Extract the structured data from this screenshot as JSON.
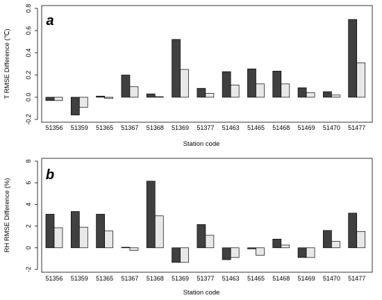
{
  "chart_data": [
    {
      "type": "bar",
      "panel_label": "a",
      "ylabel": "T RMSE Difference (℃)",
      "xlabel": "Station code",
      "categories": [
        "51356",
        "51359",
        "51365",
        "51367",
        "51368",
        "51369",
        "51377",
        "51463",
        "51465",
        "51468",
        "51469",
        "51470",
        "51477"
      ],
      "ylim": [
        -0.2,
        0.8
      ],
      "yticks": [
        -0.2,
        0.0,
        0.2,
        0.4,
        0.6,
        0.8
      ],
      "ytick_labels": [
        "-0.2",
        "0.0",
        "0.2",
        "0.4",
        "0.6",
        "0.8"
      ],
      "series": [
        {
          "values": [
            -0.03,
            -0.16,
            0.01,
            0.2,
            0.03,
            0.52,
            0.08,
            0.23,
            0.255,
            0.235,
            0.085,
            0.05,
            0.7
          ],
          "color": "#404040"
        },
        {
          "values": [
            -0.03,
            -0.09,
            -0.01,
            0.095,
            0.005,
            0.25,
            0.035,
            0.11,
            0.12,
            0.12,
            0.04,
            0.02,
            0.31
          ],
          "color": "#e8e8e8"
        }
      ]
    },
    {
      "type": "bar",
      "panel_label": "b",
      "ylabel": "RH RMSE Difference (%)",
      "xlabel": "Station code",
      "categories": [
        "51356",
        "51359",
        "51365",
        "51367",
        "51368",
        "51369",
        "51377",
        "51463",
        "51465",
        "51468",
        "51469",
        "51470",
        "51477"
      ],
      "ylim": [
        -2,
        8
      ],
      "yticks": [
        -2,
        0,
        2,
        4,
        6,
        8
      ],
      "ytick_labels": [
        "-2",
        "0",
        "2",
        "4",
        "6",
        "8"
      ],
      "series": [
        {
          "values": [
            3.1,
            3.35,
            3.1,
            0.05,
            6.15,
            -1.35,
            2.15,
            -1.1,
            -0.1,
            0.8,
            -0.9,
            1.6,
            3.2
          ],
          "color": "#404040"
        },
        {
          "values": [
            1.85,
            1.9,
            1.55,
            -0.25,
            2.95,
            -1.35,
            1.15,
            -0.9,
            -0.7,
            0.25,
            -0.9,
            0.6,
            1.5
          ],
          "color": "#e8e8e8"
        }
      ]
    }
  ]
}
